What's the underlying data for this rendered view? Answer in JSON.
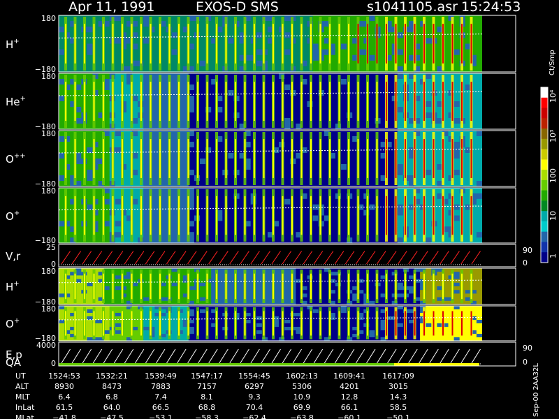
{
  "header": {
    "date": "Apr 11, 1991",
    "instrument": "EXOS-D SMS",
    "file": "s1041105.asr",
    "time": "15:24:53"
  },
  "panels": [
    {
      "id": "h-plus",
      "name": "H",
      "sup": "+",
      "ytop": "180",
      "ybot": "−180",
      "type": "spectrogram"
    },
    {
      "id": "he-plus",
      "name": "He",
      "sup": "+",
      "ytop": "180",
      "ybot": "−180",
      "type": "spectrogram"
    },
    {
      "id": "o-plusplus",
      "name": "O",
      "sup": "++",
      "ytop": "180",
      "ybot": "−180",
      "type": "spectrogram"
    },
    {
      "id": "o-plus",
      "name": "O",
      "sup": "+",
      "ytop": "180",
      "ybot": "−180",
      "type": "spectrogram"
    },
    {
      "id": "vr",
      "name": "V,r",
      "sup": "",
      "ytop": "25",
      "ybot": "0",
      "rtop": "90",
      "rbot": "0",
      "type": "line"
    },
    {
      "id": "h-plus-2",
      "name": "H",
      "sup": "+",
      "ytop": "180",
      "ybot": "−180",
      "type": "spectrogram"
    },
    {
      "id": "o-plus-2",
      "name": "O",
      "sup": "+",
      "ytop": "180",
      "ybot": "−180",
      "type": "spectrogram"
    },
    {
      "id": "ep-qa",
      "name": "E,p",
      "name2": "QA",
      "sup": "",
      "ytop": "4000",
      "ybot": "0",
      "rtop": "90",
      "rbot": "0",
      "type": "line"
    }
  ],
  "colorbar": {
    "label": "Ct/Smp",
    "ticks": [
      "10⁴",
      "10³",
      "100",
      "10",
      "1"
    ],
    "colors": [
      "#ffffff",
      "#ff0000",
      "#cc0000",
      "#bb2200",
      "#886600",
      "#999900",
      "#cccc00",
      "#ffff00",
      "#aadd00",
      "#66cc00",
      "#22aa00",
      "#008822",
      "#00aaaa",
      "#00cccc",
      "#2266aa",
      "#1133aa",
      "#000088"
    ]
  },
  "footer": {
    "rows": [
      {
        "label": "UT",
        "values": [
          "1524:53",
          "1532:21",
          "1539:49",
          "1547:17",
          "1554:45",
          "1602:13",
          "1609:41",
          "1617:09"
        ]
      },
      {
        "label": "ALT",
        "values": [
          "8930",
          "8473",
          "7883",
          "7157",
          "6297",
          "5306",
          "4201",
          "3015"
        ]
      },
      {
        "label": "MLT",
        "values": [
          "6.4",
          "6.8",
          "7.4",
          "8.1",
          "9.3",
          "10.9",
          "12.8",
          "14.3"
        ]
      },
      {
        "label": "InLat",
        "values": [
          "61.5",
          "64.0",
          "66.5",
          "68.8",
          "70.4",
          "69.9",
          "66.1",
          "58.5"
        ]
      },
      {
        "label": "MLat",
        "values": [
          "−41.8",
          "−47.5",
          "−53.1",
          "−58.3",
          "−62.4",
          "−63.8",
          "−60.1",
          "−50.1"
        ]
      }
    ],
    "side_label": "Sep-00 2AA32L"
  },
  "chart_data": {
    "type": "heatmap",
    "x": [
      "1524:53",
      "1532:21",
      "1539:49",
      "1547:17",
      "1554:45",
      "1602:13",
      "1609:41",
      "1617:09"
    ],
    "series": [
      {
        "name": "H+",
        "ylim": [
          -180,
          180
        ]
      },
      {
        "name": "He+",
        "ylim": [
          -180,
          180
        ]
      },
      {
        "name": "O++",
        "ylim": [
          -180,
          180
        ]
      },
      {
        "name": "O+",
        "ylim": [
          -180,
          180
        ]
      },
      {
        "name": "V,r",
        "ylim": [
          0,
          25
        ]
      },
      {
        "name": "H+",
        "ylim": [
          -180,
          180
        ]
      },
      {
        "name": "O+",
        "ylim": [
          -180,
          180
        ]
      },
      {
        "name": "E,p",
        "ylim": [
          0,
          4000
        ]
      }
    ],
    "colorbar_label": "Ct/Smp",
    "colorbar_ticks": [
      "10⁴",
      "10³",
      "100",
      "10",
      "1"
    ]
  }
}
